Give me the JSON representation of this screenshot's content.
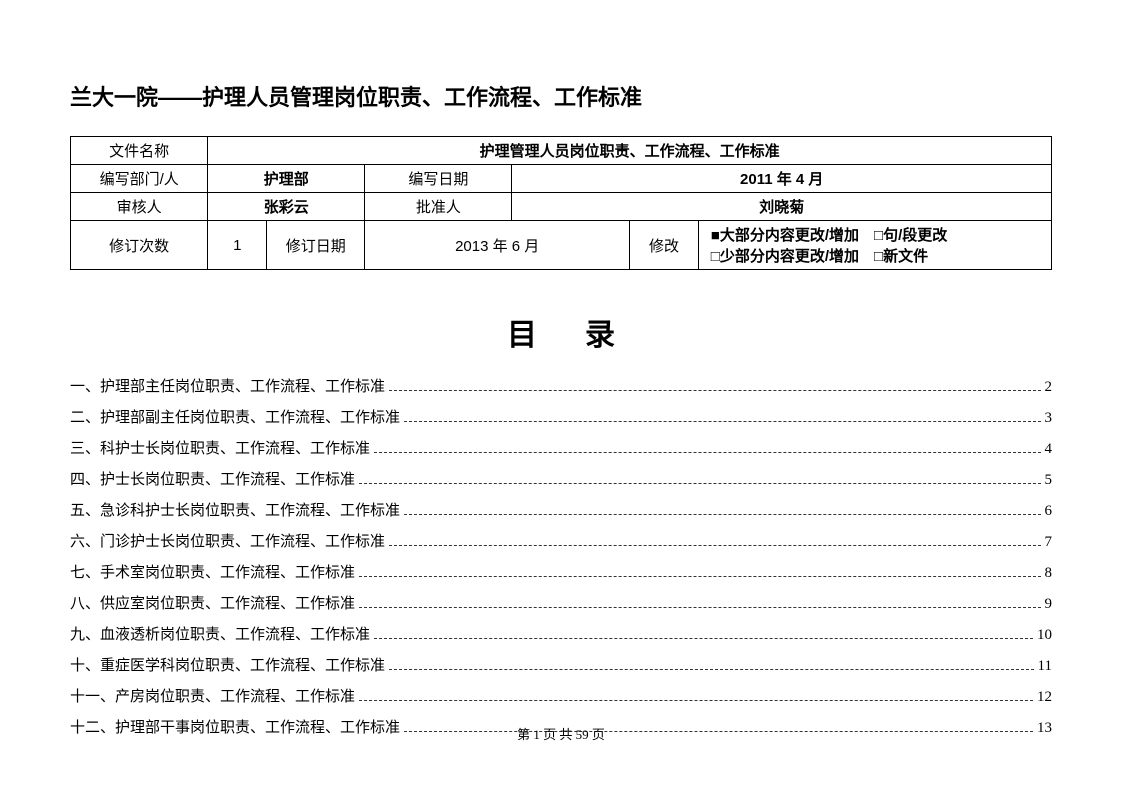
{
  "heading": "兰大一院——护理人员管理岗位职责、工作流程、工作标准",
  "table": {
    "row1": {
      "label": "文件名称",
      "value": "护理管理人员岗位职责、工作流程、工作标准"
    },
    "row2": {
      "label1": "编写部门/人",
      "value1": "护理部",
      "label2": "编写日期",
      "value2": "2011 年 4 月"
    },
    "row3": {
      "label1": "审核人",
      "value1": "张彩云",
      "label2": "批准人",
      "value2": "刘晓菊"
    },
    "row4": {
      "label1": "修订次数",
      "value1": "1",
      "label2": "修订日期",
      "value2": "2013 年 6 月",
      "label3": "修改",
      "value3": "■大部分内容更改/增加　□句/段更改\n□少部分内容更改/增加　□新文件"
    }
  },
  "toc_title": "目录",
  "toc": [
    {
      "label": "一、护理部主任岗位职责、工作流程、工作标准",
      "page": "2"
    },
    {
      "label": "二、护理部副主任岗位职责、工作流程、工作标准",
      "page": "3"
    },
    {
      "label": "三、科护士长岗位职责、工作流程、工作标准",
      "page": "4"
    },
    {
      "label": "四、护士长岗位职责、工作流程、工作标准",
      "page": "5"
    },
    {
      "label": "五、急诊科护士长岗位职责、工作流程、工作标准",
      "page": "6"
    },
    {
      "label": "六、门诊护士长岗位职责、工作流程、工作标准",
      "page": "7"
    },
    {
      "label": "七、手术室岗位职责、工作流程、工作标准",
      "page": "8"
    },
    {
      "label": "八、供应室岗位职责、工作流程、工作标准",
      "page": "9"
    },
    {
      "label": "九、血液透析岗位职责、工作流程、工作标准",
      "page": "10"
    },
    {
      "label": "十、重症医学科岗位职责、工作流程、工作标准",
      "page": "11"
    },
    {
      "label": "十一、产房岗位职责、工作流程、工作标准",
      "page": "12"
    },
    {
      "label": "十二、护理部干事岗位职责、工作流程、工作标准",
      "page": "13"
    }
  ],
  "footer": "第 1 页 共 59 页",
  "colors": {
    "text": "#000000",
    "background": "#ffffff",
    "border": "#000000"
  }
}
